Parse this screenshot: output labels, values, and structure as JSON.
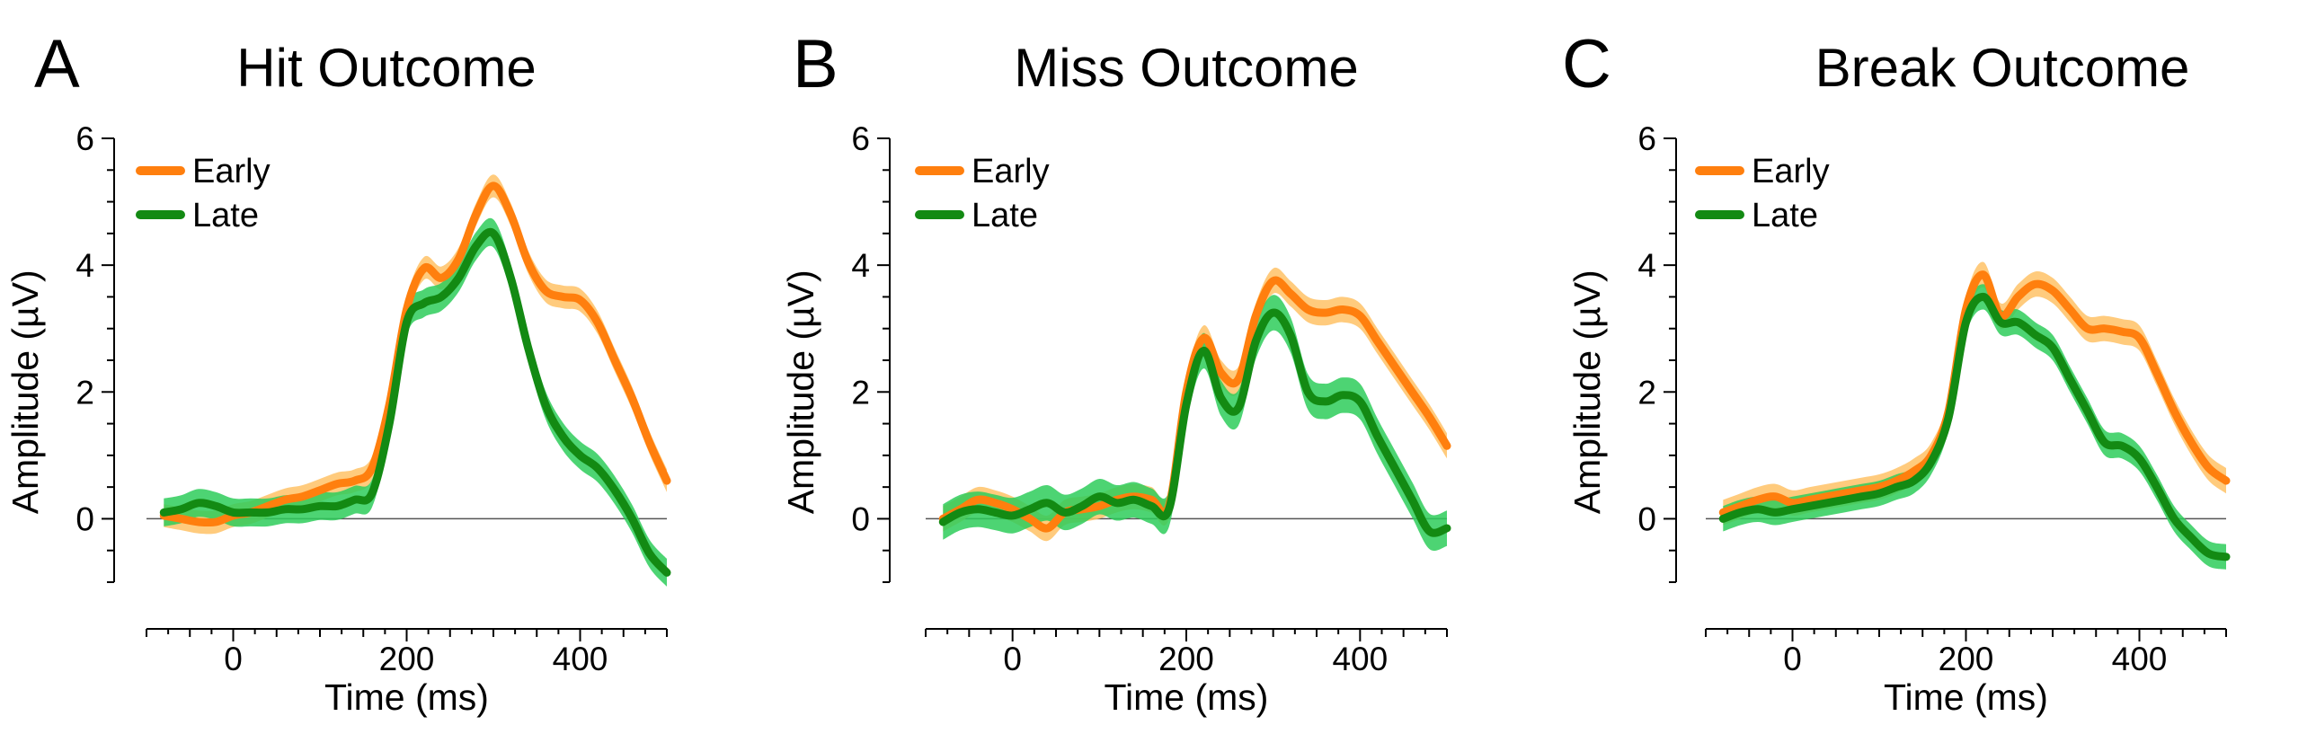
{
  "colors": {
    "early": "#ff7f0e",
    "early_band": "#ffc266",
    "late": "#138a13",
    "late_band": "#2ecc5a"
  },
  "chart_data": [
    {
      "type": "line",
      "panel_letter": "A",
      "title": "Hit Outcome",
      "xlabel": "Time (ms)",
      "ylabel": "Amplitude (µV)",
      "xlim": [
        -100,
        500
      ],
      "ylim": [
        -1,
        6
      ],
      "x_ticks": [
        "0",
        "200",
        "400"
      ],
      "x_tick_values": [
        0,
        200,
        400
      ],
      "y_ticks": [
        "0",
        "2",
        "4",
        "6"
      ],
      "y_tick_values": [
        0,
        2,
        4,
        6
      ],
      "legend": "top-left",
      "x": [
        -80,
        -60,
        -40,
        -20,
        0,
        20,
        40,
        60,
        80,
        100,
        120,
        140,
        160,
        180,
        200,
        220,
        240,
        260,
        280,
        300,
        320,
        340,
        360,
        380,
        400,
        420,
        440,
        460,
        480,
        500
      ],
      "series": [
        {
          "name": "Early",
          "band": 0.18,
          "values": [
            0.05,
            0.0,
            -0.05,
            -0.05,
            0.05,
            0.1,
            0.2,
            0.3,
            0.35,
            0.45,
            0.55,
            0.6,
            0.8,
            1.8,
            3.3,
            3.95,
            3.8,
            4.1,
            4.8,
            5.25,
            4.8,
            4.05,
            3.6,
            3.5,
            3.45,
            3.1,
            2.5,
            1.9,
            1.2,
            0.6
          ]
        },
        {
          "name": "Late",
          "band": 0.22,
          "values": [
            0.1,
            0.15,
            0.25,
            0.2,
            0.1,
            0.1,
            0.1,
            0.15,
            0.15,
            0.2,
            0.2,
            0.3,
            0.4,
            1.5,
            3.1,
            3.4,
            3.5,
            3.8,
            4.3,
            4.5,
            3.8,
            2.7,
            1.8,
            1.3,
            1.0,
            0.8,
            0.45,
            0.0,
            -0.55,
            -0.85
          ]
        }
      ]
    },
    {
      "type": "line",
      "panel_letter": "B",
      "title": "Miss Outcome",
      "xlabel": "Time (ms)",
      "ylabel": "Amplitude (µV)",
      "xlim": [
        -100,
        500
      ],
      "ylim": [
        -1,
        6
      ],
      "x_ticks": [
        "0",
        "200",
        "400"
      ],
      "x_tick_values": [
        0,
        200,
        400
      ],
      "y_ticks": [
        "0",
        "2",
        "4",
        "6"
      ],
      "y_tick_values": [
        0,
        2,
        4,
        6
      ],
      "legend": "top-left",
      "x": [
        -80,
        -60,
        -40,
        -20,
        0,
        20,
        40,
        60,
        80,
        100,
        120,
        140,
        160,
        180,
        200,
        220,
        240,
        260,
        280,
        300,
        320,
        340,
        360,
        380,
        400,
        420,
        440,
        460,
        480,
        500
      ],
      "series": [
        {
          "name": "Early",
          "band": 0.2,
          "values": [
            0.0,
            0.15,
            0.3,
            0.25,
            0.15,
            0.0,
            -0.15,
            0.1,
            0.15,
            0.2,
            0.3,
            0.35,
            0.3,
            0.2,
            2.0,
            2.85,
            2.3,
            2.2,
            3.2,
            3.75,
            3.55,
            3.3,
            3.25,
            3.3,
            3.2,
            2.8,
            2.4,
            2.0,
            1.6,
            1.15
          ]
        },
        {
          "name": "Late",
          "band": 0.28,
          "values": [
            -0.05,
            0.1,
            0.15,
            0.1,
            0.05,
            0.15,
            0.25,
            0.1,
            0.2,
            0.35,
            0.25,
            0.3,
            0.2,
            0.15,
            1.8,
            2.65,
            1.9,
            1.75,
            2.8,
            3.25,
            2.9,
            2.0,
            1.85,
            1.95,
            1.85,
            1.3,
            0.8,
            0.3,
            -0.2,
            -0.15
          ]
        }
      ]
    },
    {
      "type": "line",
      "panel_letter": "C",
      "title": "Break Outcome",
      "xlabel": "Time (ms)",
      "ylabel": "Amplitude (µV)",
      "xlim": [
        -100,
        500
      ],
      "ylim": [
        -1,
        6
      ],
      "x_ticks": [
        "0",
        "200",
        "400"
      ],
      "x_tick_values": [
        0,
        200,
        400
      ],
      "y_ticks": [
        "0",
        "2",
        "4",
        "6"
      ],
      "y_tick_values": [
        0,
        2,
        4,
        6
      ],
      "legend": "top-left",
      "x": [
        -80,
        -60,
        -40,
        -20,
        0,
        20,
        40,
        60,
        80,
        100,
        120,
        140,
        160,
        180,
        200,
        220,
        240,
        260,
        280,
        300,
        320,
        340,
        360,
        380,
        400,
        420,
        440,
        460,
        480,
        500
      ],
      "series": [
        {
          "name": "Early",
          "band": 0.2,
          "values": [
            0.1,
            0.2,
            0.3,
            0.35,
            0.25,
            0.3,
            0.35,
            0.4,
            0.45,
            0.5,
            0.6,
            0.75,
            1.0,
            1.7,
            3.3,
            3.85,
            3.2,
            3.5,
            3.7,
            3.6,
            3.3,
            3.0,
            3.0,
            2.95,
            2.85,
            2.3,
            1.7,
            1.2,
            0.8,
            0.6
          ]
        },
        {
          "name": "Late",
          "band": 0.2,
          "values": [
            0.0,
            0.1,
            0.15,
            0.1,
            0.15,
            0.2,
            0.25,
            0.3,
            0.35,
            0.4,
            0.5,
            0.6,
            0.9,
            1.6,
            3.1,
            3.5,
            3.1,
            3.1,
            2.9,
            2.7,
            2.2,
            1.7,
            1.2,
            1.15,
            0.95,
            0.5,
            0.0,
            -0.3,
            -0.55,
            -0.6
          ]
        }
      ]
    }
  ]
}
